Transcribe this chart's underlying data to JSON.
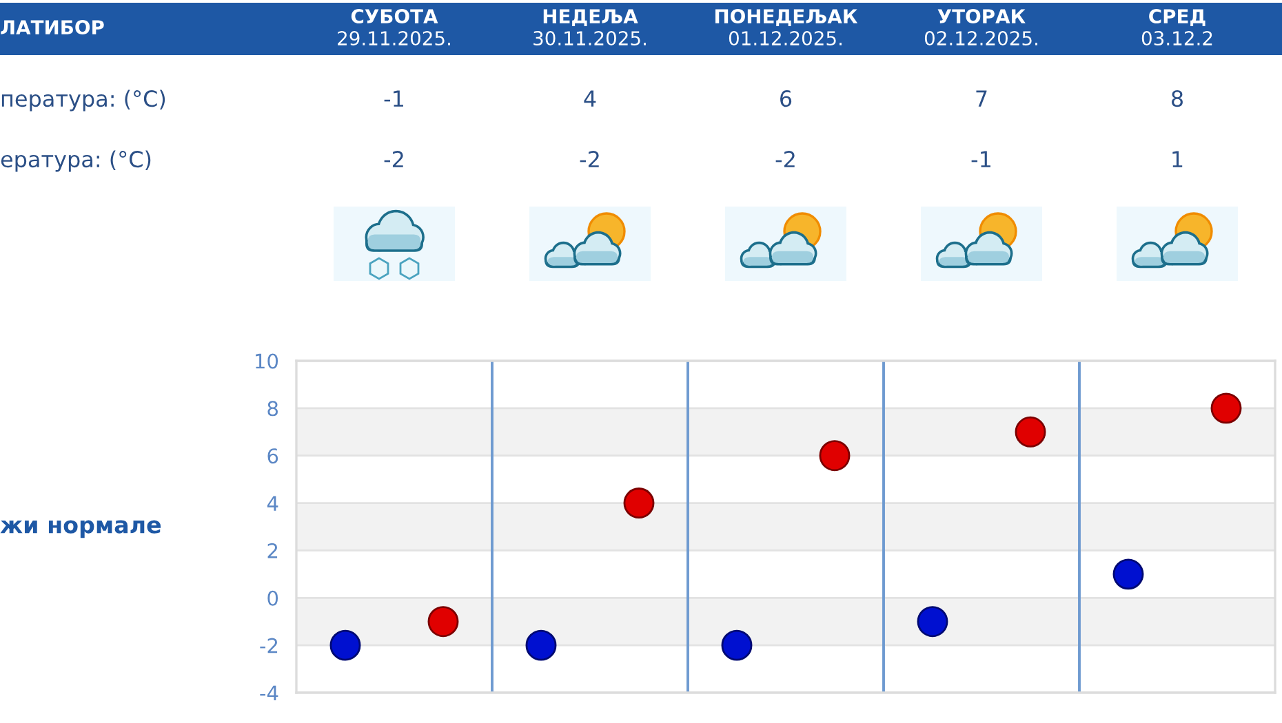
{
  "chart_data": {
    "type": "scatter",
    "title": "ЛАТИБОР",
    "ylabel": "жи нормале",
    "annotations": [
      "СУБОТА\n29.11.2025.",
      "НЕДЕЉА\n30.11.2025.",
      "ПОНЕДЕЉАК\n01.12.2025.",
      "УТОРАК\n02.12.2025.",
      "СРЕД\n03.12.2",
      "пература: (°C)",
      "ература: (°C)"
    ],
    "categories": [
      null,
      null,
      null,
      null,
      null
    ],
    "series": [
      {
        "color": "#e00000",
        "values": [
          -1,
          4,
          6,
          7,
          8
        ]
      },
      {
        "color": "#0010d0",
        "values": [
          -2,
          -2,
          -2,
          -1,
          1
        ]
      }
    ],
    "ylim": [
      -4,
      10
    ],
    "yticks": [
      -4,
      -2,
      0,
      2,
      4,
      6,
      8,
      10
    ],
    "bands": [
      {
        "axis": "y",
        "from": 6,
        "to": 8,
        "color": "#f2f2f2"
      },
      {
        "axis": "y",
        "from": 2,
        "to": 4,
        "color": "#f2f2f2"
      },
      {
        "axis": "y",
        "from": -2,
        "to": 0,
        "color": "#f2f2f2"
      }
    ],
    "grid": true,
    "marker": "circle",
    "data_labels": true
  }
}
